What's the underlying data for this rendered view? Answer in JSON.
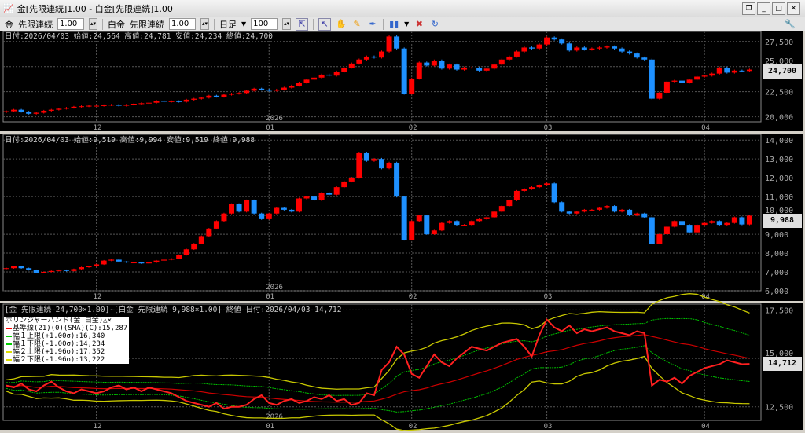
{
  "window": {
    "title": "金[先限連続]1.00 - 白金[先限連続]1.00"
  },
  "toolbar": {
    "sym1": "金",
    "contract1": "先限連続",
    "mult1": "1.00",
    "sym2": "白金",
    "contract2": "先限連続",
    "mult2": "1.00",
    "period": "日足",
    "count": "100"
  },
  "panes": [
    {
      "header": "日付:2026/04/03 始値:24,564 高値:24,781 安値:24,234 終値:24,700",
      "last": "24,700",
      "ticks": [
        "27,500",
        "25,000",
        "22,500",
        "20,000"
      ]
    },
    {
      "header": "日付:2026/04/03 始値:9,519 高値:9,994 安値:9,519 終値:9,988",
      "last": "9,988",
      "ticks": [
        "14,000",
        "13,000",
        "12,000",
        "11,000",
        "10,000",
        "9,000",
        "8,000",
        "7,000",
        "6,000"
      ]
    },
    {
      "header": "[金 先限連続 24,700×1.00]-[白金 先限連続 9,988×1.00] 終値 日付:2026/04/03 14,712",
      "last": "14,712",
      "ticks": [
        "17,500",
        "15,000",
        "12,500"
      ]
    }
  ],
  "legend": {
    "title": "ボリンジャーバンド(金 白金)△×",
    "items": [
      {
        "label": "基準線(21)(0)(SMA)(C):15,287",
        "color": "#ff0000"
      },
      {
        "label": "幅１上限(+1.00σ):16,340",
        "color": "#00cc00"
      },
      {
        "label": "幅１下限(-1.00σ):14,234",
        "color": "#00cc00"
      },
      {
        "label": "幅２上限(+1.96σ):17,352",
        "color": "#dddd00"
      },
      {
        "label": "幅２下限(-1.96σ):13,222",
        "color": "#dddd00"
      }
    ]
  },
  "chart_data": {
    "type": "candlestick",
    "x_labels": [
      "12",
      "01",
      "02",
      "03",
      "04"
    ],
    "year_label": "2026",
    "colors": {
      "up": "#ff0000",
      "down": "#1e90ff",
      "ratio": "#ff2020",
      "sigma1": "#00c000",
      "sigma2": "#c8c800"
    },
    "gold": [
      20550,
      20700,
      20500,
      20300,
      20400,
      20600,
      20700,
      20800,
      20900,
      21000,
      21050,
      21100,
      21100,
      21150,
      21200,
      21100,
      21200,
      21300,
      21350,
      21400,
      21600,
      21500,
      21550,
      21500,
      21700,
      21800,
      21900,
      22100,
      22000,
      22200,
      22300,
      22370,
      22600,
      22800,
      22700,
      22600,
      22700,
      22900,
      23100,
      23400,
      23700,
      23900,
      24200,
      24100,
      24500,
      24900,
      25300,
      25700,
      26000,
      25900,
      26500,
      28000,
      26800,
      22300,
      23800,
      25400,
      25100,
      25600,
      24800,
      25200,
      24700,
      24900,
      24900,
      24600,
      24800,
      25200,
      25700,
      26000,
      26500,
      26900,
      26800,
      27200,
      27900,
      27700,
      27300,
      26600,
      26900,
      26700,
      26800,
      26900,
      27000,
      26800,
      26500,
      26300,
      25900,
      25700,
      21800,
      22400,
      23500,
      23600,
      23400,
      23700,
      24000,
      24100,
      24300,
      24900,
      24400,
      24600,
      24564,
      24700
    ],
    "gold_ylim": [
      19500,
      28500
    ],
    "platinum": [
      7200,
      7300,
      7200,
      7100,
      6950,
      7000,
      7050,
      7100,
      7050,
      7150,
      7250,
      7300,
      7400,
      7600,
      7650,
      7550,
      7500,
      7500,
      7450,
      7500,
      7600,
      7650,
      7700,
      7900,
      8200,
      8500,
      8900,
      9300,
      9700,
      10100,
      10600,
      10200,
      10800,
      10100,
      9800,
      10100,
      10400,
      10300,
      10200,
      10900,
      11000,
      10800,
      11200,
      11100,
      11500,
      11800,
      12000,
      13300,
      12900,
      13000,
      12500,
      12800,
      11000,
      8700,
      9700,
      10000,
      9000,
      9200,
      9600,
      9700,
      9500,
      9500,
      9700,
      9800,
      9900,
      10200,
      10500,
      10800,
      11300,
      11400,
      11500,
      11600,
      11700,
      10700,
      10200,
      10100,
      10200,
      10300,
      10300,
      10400,
      10500,
      10200,
      10300,
      10000,
      10100,
      9900,
      8500,
      9000,
      9400,
      9700,
      9500,
      9100,
      9500,
      9600,
      9700,
      9500,
      9600,
      9900,
      9519,
      9988
    ],
    "platinum_ylim": [
      6000,
      14300
    ],
    "ratio": [
      13600,
      13500,
      13700,
      13400,
      13300,
      13600,
      13800,
      13500,
      13300,
      13200,
      13400,
      13300,
      13200,
      13300,
      13500,
      13600,
      13400,
      13500,
      13300,
      13500,
      13400,
      13300,
      13200,
      13000,
      12800,
      12700,
      12600,
      12500,
      12700,
      12400,
      12500,
      12500,
      12600,
      12900,
      13100,
      12700,
      12600,
      12800,
      12900,
      12700,
      12800,
      13000,
      12900,
      13100,
      12800,
      12900,
      12600,
      12700,
      13200,
      13100,
      14400,
      14800,
      15600,
      15200,
      14200,
      14000,
      14600,
      15200,
      14800,
      14600,
      15000,
      15300,
      15600,
      15500,
      15400,
      15600,
      15800,
      15900,
      16000,
      15600,
      15100,
      16200,
      17000,
      16600,
      16400,
      16700,
      16300,
      16500,
      16400,
      16500,
      16600,
      16400,
      16300,
      16200,
      16400,
      16300,
      13600,
      13900,
      13800,
      14000,
      13700,
      14100,
      14300,
      14500,
      14600,
      14700,
      14900,
      14800,
      14700,
      14712
    ],
    "ratio_ylim": [
      11800,
      17800
    ]
  }
}
